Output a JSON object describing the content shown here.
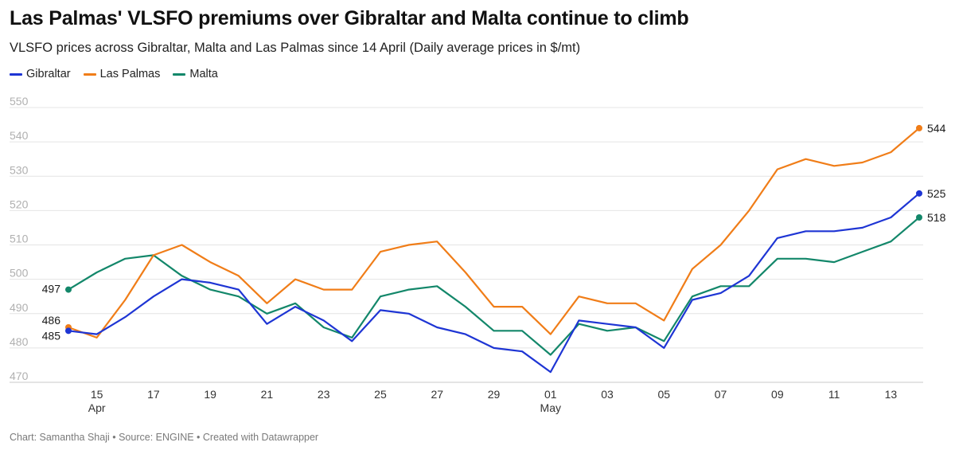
{
  "header": {
    "title": "Las Palmas' VLSFO premiums over Gibraltar and Malta continue to climb",
    "subtitle": "VLSFO prices across Gibraltar, Malta and Las Palmas since 14 April (Daily average prices in $/mt)"
  },
  "footer": {
    "credit": "Chart: Samantha Shaji • Source: ENGINE • Created with Datawrapper"
  },
  "chart_data": {
    "type": "line",
    "title": "Las Palmas' VLSFO premiums over Gibraltar and Malta continue to climb",
    "subtitle": "VLSFO prices across Gibraltar, Malta and Las Palmas since 14 April (Daily average prices in $/mt)",
    "xlabel": "",
    "ylabel": "",
    "ylim": [
      470,
      550
    ],
    "yticks": [
      470,
      480,
      490,
      500,
      510,
      520,
      530,
      540,
      550
    ],
    "grid": true,
    "legend_position": "top-left",
    "x": [
      "14 Apr",
      "15 Apr",
      "16 Apr",
      "17 Apr",
      "18 Apr",
      "19 Apr",
      "20 Apr",
      "21 Apr",
      "22 Apr",
      "23 Apr",
      "24 Apr",
      "25 Apr",
      "26 Apr",
      "27 Apr",
      "28 Apr",
      "29 Apr",
      "30 Apr",
      "01 May",
      "02 May",
      "03 May",
      "04 May",
      "05 May",
      "06 May",
      "07 May",
      "08 May",
      "09 May",
      "10 May",
      "11 May",
      "12 May",
      "13 May",
      "14 May"
    ],
    "xtick_labels": [
      {
        "index": 1,
        "label": "15",
        "sublabel": "Apr"
      },
      {
        "index": 3,
        "label": "17",
        "sublabel": ""
      },
      {
        "index": 5,
        "label": "19",
        "sublabel": ""
      },
      {
        "index": 7,
        "label": "21",
        "sublabel": ""
      },
      {
        "index": 9,
        "label": "23",
        "sublabel": ""
      },
      {
        "index": 11,
        "label": "25",
        "sublabel": ""
      },
      {
        "index": 13,
        "label": "27",
        "sublabel": ""
      },
      {
        "index": 15,
        "label": "29",
        "sublabel": ""
      },
      {
        "index": 17,
        "label": "01",
        "sublabel": "May"
      },
      {
        "index": 19,
        "label": "03",
        "sublabel": ""
      },
      {
        "index": 21,
        "label": "05",
        "sublabel": ""
      },
      {
        "index": 23,
        "label": "07",
        "sublabel": ""
      },
      {
        "index": 25,
        "label": "09",
        "sublabel": ""
      },
      {
        "index": 27,
        "label": "11",
        "sublabel": ""
      },
      {
        "index": 29,
        "label": "13",
        "sublabel": ""
      }
    ],
    "series": [
      {
        "name": "Gibraltar",
        "color": "#1e35d4",
        "values": [
          485,
          484,
          489,
          495,
          500,
          499,
          497,
          487,
          492,
          488,
          482,
          491,
          490,
          486,
          484,
          480,
          479,
          473,
          488,
          487,
          486,
          480,
          494,
          496,
          501,
          512,
          514,
          514,
          515,
          518,
          525
        ],
        "start_label": "485",
        "end_label": "525"
      },
      {
        "name": "Las Palmas",
        "color": "#f07d18",
        "values": [
          486,
          483,
          494,
          507,
          510,
          505,
          501,
          493,
          500,
          497,
          497,
          508,
          510,
          511,
          502,
          492,
          492,
          484,
          495,
          493,
          493,
          488,
          503,
          510,
          520,
          532,
          535,
          533,
          534,
          537,
          544
        ],
        "start_label": "486",
        "end_label": "544"
      },
      {
        "name": "Malta",
        "color": "#13876a",
        "values": [
          497,
          502,
          506,
          507,
          501,
          497,
          495,
          490,
          493,
          486,
          483,
          495,
          497,
          498,
          492,
          485,
          485,
          478,
          487,
          485,
          486,
          482,
          495,
          498,
          498,
          506,
          506,
          505,
          508,
          511,
          518
        ],
        "start_label": "497",
        "end_label": "518"
      }
    ]
  }
}
